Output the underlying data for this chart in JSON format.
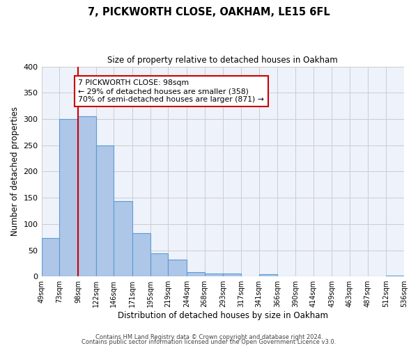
{
  "title": "7, PICKWORTH CLOSE, OAKHAM, LE15 6FL",
  "subtitle": "Size of property relative to detached houses in Oakham",
  "xlabel": "Distribution of detached houses by size in Oakham",
  "ylabel": "Number of detached properties",
  "bar_edges": [
    49,
    73,
    98,
    122,
    146,
    171,
    195,
    219,
    244,
    268,
    293,
    317,
    341,
    366,
    390,
    414,
    439,
    463,
    487,
    512,
    536
  ],
  "bar_heights": [
    73,
    300,
    305,
    249,
    143,
    83,
    44,
    32,
    8,
    5,
    5,
    0,
    4,
    0,
    0,
    0,
    0,
    0,
    0,
    2
  ],
  "tick_labels": [
    "49sqm",
    "73sqm",
    "98sqm",
    "122sqm",
    "146sqm",
    "171sqm",
    "195sqm",
    "219sqm",
    "244sqm",
    "268sqm",
    "293sqm",
    "317sqm",
    "341sqm",
    "366sqm",
    "390sqm",
    "414sqm",
    "439sqm",
    "463sqm",
    "487sqm",
    "512sqm",
    "536sqm"
  ],
  "property_size": 98,
  "property_label": "7 PICKWORTH CLOSE: 98sqm",
  "annotation_line1": "← 29% of detached houses are smaller (358)",
  "annotation_line2": "70% of semi-detached houses are larger (871) →",
  "bar_color": "#aec6e8",
  "bar_edge_color": "#5b9bd5",
  "vline_color": "#cc0000",
  "annotation_box_edge": "#cc0000",
  "ylim": [
    0,
    400
  ],
  "yticks": [
    0,
    50,
    100,
    150,
    200,
    250,
    300,
    350,
    400
  ],
  "grid_color": "#cccccc",
  "bg_color": "#eef2fa",
  "footer1": "Contains HM Land Registry data © Crown copyright and database right 2024.",
  "footer2": "Contains public sector information licensed under the Open Government Licence v3.0."
}
